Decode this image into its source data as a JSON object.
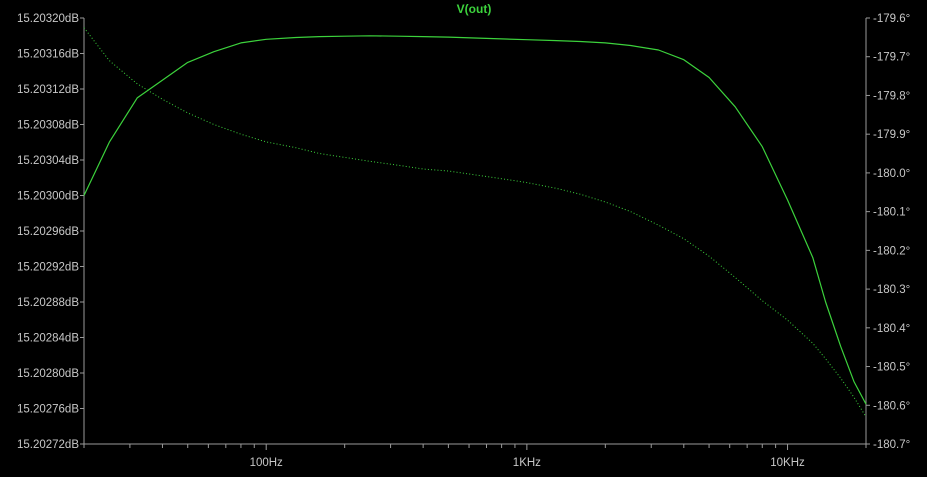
{
  "chart_data": {
    "type": "line",
    "title": "V(out)",
    "colors": {
      "background": "#000000",
      "axis": "#9a9a9a",
      "tick_label": "#c8c8c8",
      "title": "#3cd23c",
      "magnitude": "#3cd23c",
      "phase": "#3cd23c"
    },
    "x_axis": {
      "scale": "log",
      "unit": "Hz",
      "range": [
        20,
        20000
      ],
      "tick_labels": [
        {
          "value": 100,
          "label": "100Hz"
        },
        {
          "value": 1000,
          "label": "1KHz"
        },
        {
          "value": 10000,
          "label": "10KHz"
        }
      ]
    },
    "y_left": {
      "unit": "dB",
      "range": [
        15.20272,
        15.2032
      ],
      "tick_labels": [
        "15.20320dB",
        "15.20316dB",
        "15.20312dB",
        "15.20308dB",
        "15.20304dB",
        "15.20300dB",
        "15.20296dB",
        "15.20292dB",
        "15.20288dB",
        "15.20284dB",
        "15.20280dB",
        "15.20276dB",
        "15.20272dB"
      ]
    },
    "y_right": {
      "unit": "°",
      "range": [
        -180.7,
        -179.6
      ],
      "tick_labels": [
        "-179.6°",
        "-179.7°",
        "-179.8°",
        "-179.9°",
        "-180.0°",
        "-180.1°",
        "-180.2°",
        "-180.3°",
        "-180.4°",
        "-180.5°",
        "-180.6°",
        "-180.7°"
      ]
    },
    "series": [
      {
        "role": "magnitude",
        "axis": "left",
        "style": "solid",
        "x": [
          20,
          25,
          32,
          40,
          50,
          63,
          80,
          100,
          130,
          160,
          200,
          250,
          320,
          400,
          500,
          630,
          800,
          1000,
          1300,
          1600,
          2000,
          2500,
          3200,
          4000,
          5000,
          6300,
          8000,
          10000,
          12500,
          14000,
          16000,
          18000,
          20000
        ],
        "y": [
          15.203,
          15.20306,
          15.20311,
          15.20313,
          15.20315,
          15.203162,
          15.203172,
          15.203176,
          15.203178,
          15.203179,
          15.2031795,
          15.20318,
          15.2031795,
          15.203179,
          15.2031785,
          15.2031775,
          15.2031765,
          15.2031755,
          15.2031745,
          15.2031735,
          15.203172,
          15.203169,
          15.203164,
          15.203153,
          15.203133,
          15.2031,
          15.203055,
          15.202995,
          15.20293,
          15.20288,
          15.20283,
          15.20279,
          15.202765
        ]
      },
      {
        "role": "phase",
        "axis": "right",
        "style": "dotted",
        "x": [
          20,
          25,
          32,
          40,
          50,
          63,
          80,
          100,
          130,
          160,
          200,
          250,
          320,
          400,
          500,
          630,
          800,
          1000,
          1300,
          1600,
          2000,
          2500,
          3200,
          4000,
          5000,
          6300,
          8000,
          10000,
          12500,
          14000,
          16000,
          18000,
          20000
        ],
        "y": [
          -179.625,
          -179.71,
          -179.77,
          -179.81,
          -179.845,
          -179.875,
          -179.9,
          -179.92,
          -179.935,
          -179.95,
          -179.96,
          -179.97,
          -179.98,
          -179.99,
          -179.995,
          -180.005,
          -180.015,
          -180.025,
          -180.04,
          -180.055,
          -180.075,
          -180.1,
          -180.135,
          -180.17,
          -180.215,
          -180.27,
          -180.33,
          -180.38,
          -180.44,
          -180.48,
          -180.53,
          -180.58,
          -180.63
        ]
      }
    ]
  }
}
